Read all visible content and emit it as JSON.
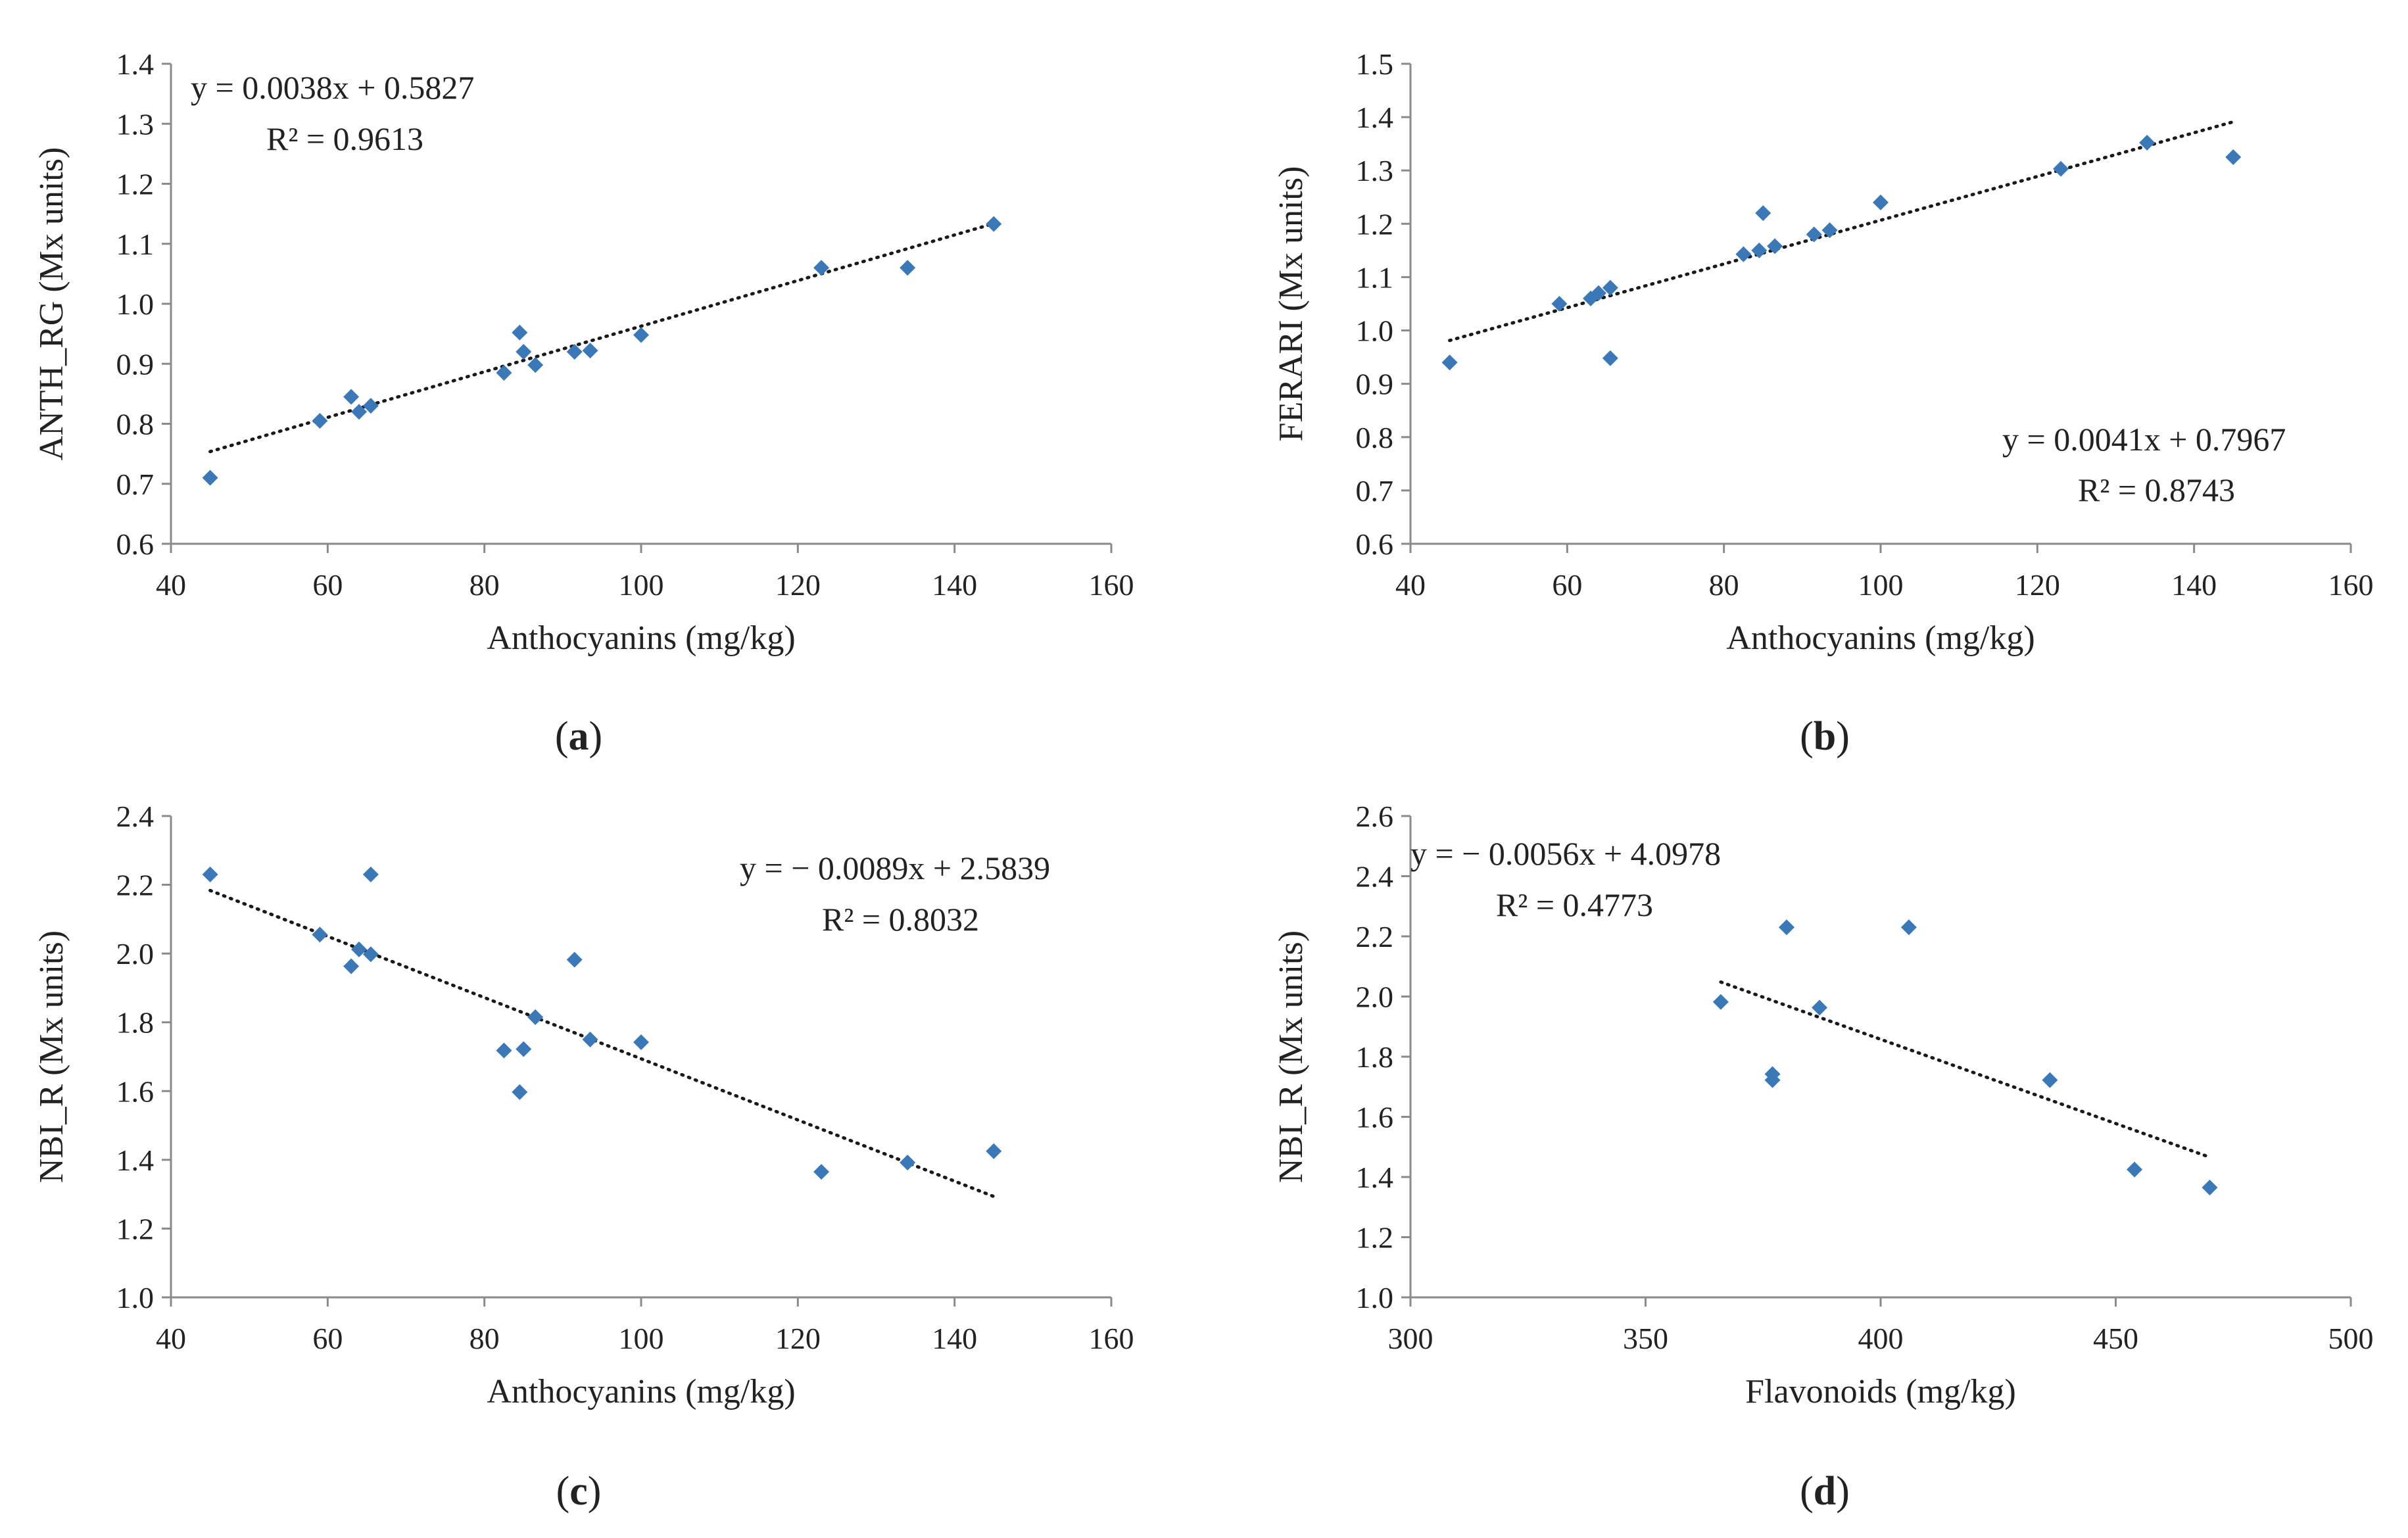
{
  "chart_data": [
    {
      "id": "a",
      "type": "scatter",
      "panel_label": "(a)",
      "panel_letter": "a",
      "xlabel": "Anthocyanins  (mg/kg)",
      "ylabel": "ANTH_RG (Mx units)",
      "xlim": [
        40,
        160
      ],
      "ylim": [
        0.6,
        1.4
      ],
      "xticks": [
        "40",
        "60",
        "80",
        "100",
        "120",
        "140",
        "160"
      ],
      "yticks": [
        "0.6",
        "0.7",
        "0.8",
        "0.9",
        "1.0",
        "1.1",
        "1.2",
        "1.3",
        "1.4"
      ],
      "equation": "y = 0.0038x + 0.5827",
      "r2": "R² = 0.9613",
      "annotation_position": "top-left",
      "trendline": {
        "slope": 0.0038,
        "intercept": 0.5827,
        "x_range": [
          45,
          145
        ]
      },
      "points": [
        [
          45,
          0.71
        ],
        [
          59,
          0.805
        ],
        [
          63,
          0.845
        ],
        [
          64,
          0.82
        ],
        [
          65.5,
          0.83
        ],
        [
          82.5,
          0.885
        ],
        [
          84.5,
          0.952
        ],
        [
          85,
          0.92
        ],
        [
          86.5,
          0.898
        ],
        [
          91.5,
          0.92
        ],
        [
          93.5,
          0.922
        ],
        [
          100,
          0.948
        ],
        [
          123,
          1.06
        ],
        [
          134,
          1.06
        ],
        [
          145,
          1.133
        ]
      ]
    },
    {
      "id": "b",
      "type": "scatter",
      "panel_label": "(b)",
      "panel_letter": "b",
      "xlabel": "Anthocyanins  (mg/kg)",
      "ylabel": "FERARI (Mx units)",
      "xlim": [
        40,
        160
      ],
      "ylim": [
        0.6,
        1.5
      ],
      "xticks": [
        "40",
        "60",
        "80",
        "100",
        "120",
        "140",
        "160"
      ],
      "yticks": [
        "0.6",
        "0.7",
        "0.8",
        "0.9",
        "1.0",
        "1.1",
        "1.2",
        "1.3",
        "1.4",
        "1.5"
      ],
      "equation": "y = 0.0041x + 0.7967",
      "r2": "R² = 0.8743",
      "annotation_position": "bottom-right",
      "trendline": {
        "slope": 0.0041,
        "intercept": 0.7967,
        "x_range": [
          45,
          145
        ]
      },
      "points": [
        [
          45,
          0.94
        ],
        [
          59,
          1.05
        ],
        [
          63,
          1.06
        ],
        [
          64,
          1.07
        ],
        [
          65.5,
          1.08
        ],
        [
          65.5,
          0.948
        ],
        [
          82.5,
          1.143
        ],
        [
          84.5,
          1.15
        ],
        [
          85,
          1.22
        ],
        [
          86.5,
          1.158
        ],
        [
          91.5,
          1.18
        ],
        [
          93.5,
          1.188
        ],
        [
          100,
          1.24
        ],
        [
          123,
          1.303
        ],
        [
          134,
          1.352
        ],
        [
          145,
          1.325
        ]
      ]
    },
    {
      "id": "c",
      "type": "scatter",
      "panel_label": "(c)",
      "panel_letter": "c",
      "xlabel": "Anthocyanins  (mg/kg)",
      "ylabel": "NBI_R (Mx units)",
      "xlim": [
        40,
        160
      ],
      "ylim": [
        1.0,
        2.4
      ],
      "xticks": [
        "40",
        "60",
        "80",
        "100",
        "120",
        "140",
        "160"
      ],
      "yticks": [
        "1.0",
        "1.2",
        "1.4",
        "1.6",
        "1.8",
        "2.0",
        "2.2",
        "2.4"
      ],
      "equation": "y = − 0.0089x + 2.5839",
      "r2": "R² = 0.8032",
      "annotation_position": "top-right",
      "trendline": {
        "slope": -0.0089,
        "intercept": 2.5839,
        "x_range": [
          45,
          145
        ]
      },
      "points": [
        [
          45,
          2.23
        ],
        [
          59,
          2.055
        ],
        [
          63,
          1.963
        ],
        [
          64,
          2.012
        ],
        [
          65.5,
          1.998
        ],
        [
          65.5,
          2.23
        ],
        [
          82.5,
          1.718
        ],
        [
          84.5,
          1.597
        ],
        [
          85,
          1.722
        ],
        [
          86.5,
          1.815
        ],
        [
          91.5,
          1.982
        ],
        [
          93.5,
          1.75
        ],
        [
          100,
          1.742
        ],
        [
          123,
          1.365
        ],
        [
          134,
          1.392
        ],
        [
          145,
          1.425
        ]
      ]
    },
    {
      "id": "d",
      "type": "scatter",
      "panel_label": "(d)",
      "panel_letter": "d",
      "xlabel": "Flavonoids  (mg/kg)",
      "ylabel": "NBI_R (Mx units)",
      "xlim": [
        300,
        500
      ],
      "ylim": [
        1.0,
        2.6
      ],
      "xticks": [
        "300",
        "350",
        "400",
        "450",
        "500"
      ],
      "yticks": [
        "1.0",
        "1.2",
        "1.4",
        "1.6",
        "1.8",
        "2.0",
        "2.2",
        "2.4",
        "2.6"
      ],
      "equation": "y = − 0.0056x + 4.0978",
      "r2": "R² = 0.4773",
      "annotation_position": "top-left",
      "trendline": {
        "slope": -0.0056,
        "intercept": 4.0978,
        "x_range": [
          366,
          470
        ]
      },
      "points": [
        [
          366,
          1.982
        ],
        [
          377,
          1.742
        ],
        [
          377,
          1.722
        ],
        [
          380,
          2.23
        ],
        [
          387,
          1.963
        ],
        [
          406,
          2.23
        ],
        [
          436,
          1.722
        ],
        [
          454,
          1.425
        ],
        [
          470,
          1.365
        ]
      ]
    }
  ]
}
